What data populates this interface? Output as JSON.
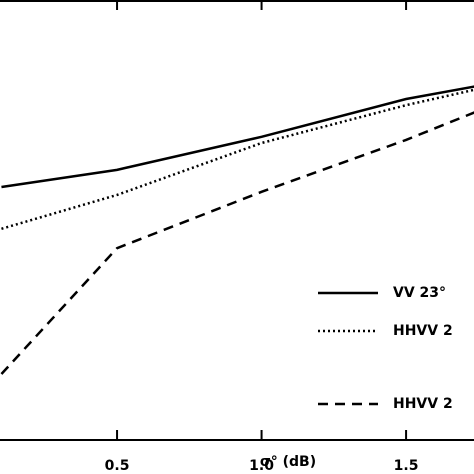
{
  "chart_data": {
    "type": "line",
    "x_label": "σ° (dB)",
    "x": [
      0.1,
      0.5,
      1.0,
      1.5,
      1.75
    ],
    "series": [
      {
        "name": "VV 23°",
        "color": "#000000",
        "dash": "solid",
        "values": [
          0.575,
          0.614,
          0.689,
          0.775,
          0.805
        ]
      },
      {
        "name": "HHVV 2",
        "color": "#000000",
        "dash": "dotted",
        "values": [
          0.48,
          0.557,
          0.675,
          0.761,
          0.798
        ]
      },
      {
        "name": "HHVV 2",
        "color": "#000000",
        "dash": "dashed",
        "values": [
          0.15,
          0.436,
          0.564,
          0.682,
          0.748
        ]
      }
    ],
    "xlim": [
      0.095,
      1.735
    ],
    "xticks": [
      0.5,
      {
        "value": 1.0,
        "label": "1.0"
      },
      1.5
    ],
    "ylim": [
      0,
      1
    ],
    "legend": "lower right"
  }
}
